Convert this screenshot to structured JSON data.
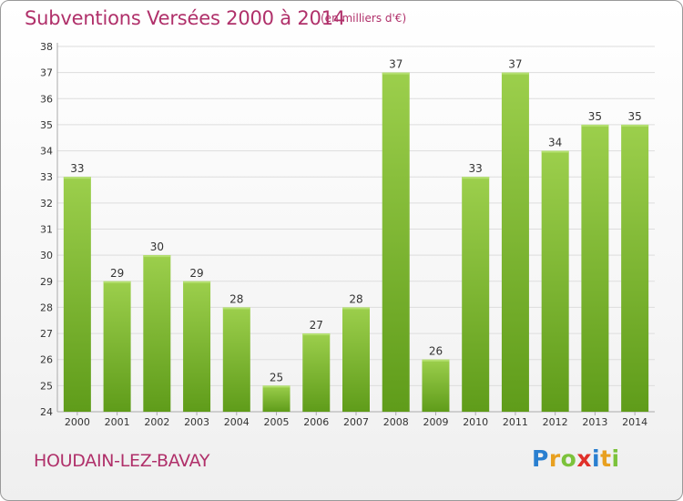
{
  "title": "Subventions Versées 2000 à 2014",
  "subtitle": "(en milliers d'€)",
  "commune": "HOUDAIN-LEZ-BAVAY",
  "logo": {
    "text": "Proxiti",
    "letters": [
      {
        "ch": "P",
        "color": "#2a7fd0"
      },
      {
        "ch": "r",
        "color": "#e8a020"
      },
      {
        "ch": "o",
        "color": "#7cc23b"
      },
      {
        "ch": "x",
        "color": "#e0302a"
      },
      {
        "ch": "i",
        "color": "#2a7fd0"
      },
      {
        "ch": "t",
        "color": "#e8a020"
      },
      {
        "ch": "i",
        "color": "#7cc23b"
      }
    ]
  },
  "colors": {
    "title": "#b0306a",
    "bar_top": "#9ccf4c",
    "bar_bottom": "#5f9c1a",
    "grid": "#dddddd",
    "axis_text": "#333333"
  },
  "chart_data": {
    "type": "bar",
    "categories": [
      "2000",
      "2001",
      "2002",
      "2003",
      "2004",
      "2005",
      "2006",
      "2007",
      "2008",
      "2009",
      "2010",
      "2011",
      "2012",
      "2013",
      "2014"
    ],
    "values": [
      33,
      29,
      30,
      29,
      28,
      25,
      27,
      28,
      37,
      26,
      33,
      37,
      34,
      35,
      35
    ],
    "ylim": [
      24,
      38
    ],
    "yticks": [
      24,
      25,
      26,
      27,
      28,
      29,
      30,
      31,
      32,
      33,
      34,
      35,
      36,
      37,
      38
    ],
    "grid": true,
    "data_labels": true
  }
}
